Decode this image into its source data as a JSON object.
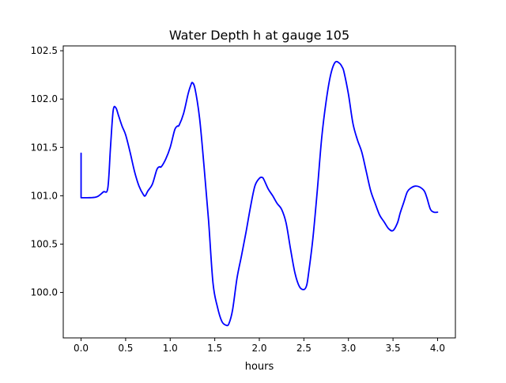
{
  "chart_data": {
    "type": "line",
    "title": "Water Depth h at gauge 105",
    "xlabel": "hours",
    "ylabel": "",
    "xlim": [
      -0.2,
      4.2
    ],
    "ylim": [
      99.53,
      102.55
    ],
    "x_ticks": [
      0.0,
      0.5,
      1.0,
      1.5,
      2.0,
      2.5,
      3.0,
      3.5,
      4.0
    ],
    "x_tick_labels": [
      "0.0",
      "0.5",
      "1.0",
      "1.5",
      "2.0",
      "2.5",
      "3.0",
      "3.5",
      "4.0"
    ],
    "y_ticks": [
      100.0,
      100.5,
      101.0,
      101.5,
      102.0,
      102.5
    ],
    "y_tick_labels": [
      "100.0",
      "100.5",
      "101.0",
      "101.5",
      "102.0",
      "102.5"
    ],
    "grid": false,
    "series": [
      {
        "color": "#0000ff",
        "x": [
          0.0,
          0.0,
          0.1,
          0.18,
          0.25,
          0.3,
          0.33,
          0.36,
          0.39,
          0.42,
          0.46,
          0.5,
          0.55,
          0.6,
          0.65,
          0.7,
          0.72,
          0.75,
          0.8,
          0.85,
          0.88,
          0.9,
          0.95,
          1.0,
          1.05,
          1.08,
          1.1,
          1.15,
          1.2,
          1.23,
          1.25,
          1.28,
          1.33,
          1.38,
          1.43,
          1.48,
          1.53,
          1.58,
          1.63,
          1.66,
          1.7,
          1.75,
          1.8,
          1.85,
          1.9,
          1.95,
          2.0,
          2.03,
          2.05,
          2.1,
          2.15,
          2.2,
          2.25,
          2.3,
          2.35,
          2.4,
          2.45,
          2.5,
          2.53,
          2.55,
          2.6,
          2.65,
          2.7,
          2.75,
          2.8,
          2.85,
          2.9,
          2.93,
          2.95,
          3.0,
          3.05,
          3.1,
          3.15,
          3.2,
          3.25,
          3.3,
          3.35,
          3.4,
          3.45,
          3.5,
          3.55,
          3.58,
          3.62,
          3.66,
          3.7,
          3.75,
          3.8,
          3.85,
          3.88,
          3.92,
          3.96,
          4.0
        ],
        "y": [
          101.44,
          100.98,
          100.98,
          100.99,
          101.03,
          101.08,
          101.5,
          101.88,
          101.91,
          101.83,
          101.72,
          101.62,
          101.45,
          101.25,
          101.1,
          101.0,
          101.0,
          101.08,
          101.15,
          101.28,
          101.3,
          101.3,
          101.38,
          101.5,
          101.68,
          101.72,
          101.73,
          101.82,
          102.0,
          102.12,
          102.17,
          102.1,
          101.8,
          101.3,
          100.75,
          100.1,
          99.85,
          99.72,
          99.66,
          99.68,
          99.82,
          100.15,
          100.38,
          100.6,
          100.85,
          101.08,
          101.18,
          101.19,
          101.17,
          101.07,
          101.0,
          100.92,
          100.85,
          100.75,
          100.5,
          100.23,
          100.07,
          100.02,
          100.05,
          100.12,
          100.38,
          100.9,
          101.55,
          101.95,
          102.25,
          102.38,
          102.37,
          102.33,
          102.28,
          102.05,
          101.75,
          101.58,
          101.45,
          101.25,
          101.05,
          100.9,
          100.78,
          100.72,
          100.65,
          100.64,
          100.7,
          100.8,
          100.9,
          101.03,
          101.08,
          101.1,
          101.09,
          101.05,
          100.98,
          100.88,
          100.75,
          100.7
        ],
        "y_adj": [
          101.44,
          100.98,
          100.98,
          100.99,
          101.04,
          101.08,
          101.5,
          101.88,
          101.91,
          101.83,
          101.72,
          101.63,
          101.45,
          101.25,
          101.1,
          101.01,
          101.0,
          101.05,
          101.12,
          101.27,
          101.3,
          101.3,
          101.38,
          101.5,
          101.68,
          101.72,
          101.73,
          101.85,
          102.05,
          102.14,
          102.17,
          102.1,
          101.8,
          101.3,
          100.75,
          100.1,
          99.85,
          99.7,
          99.66,
          99.68,
          99.82,
          100.15,
          100.38,
          100.62,
          100.88,
          101.1,
          101.18,
          101.19,
          101.17,
          101.07,
          101.0,
          100.92,
          100.86,
          100.72,
          100.45,
          100.2,
          100.06,
          100.03,
          100.07,
          100.18,
          100.55,
          101.05,
          101.6,
          101.98,
          102.25,
          102.38,
          102.37,
          102.33,
          102.28,
          102.05,
          101.75,
          101.58,
          101.45,
          101.25,
          101.05,
          100.92,
          100.8,
          100.73,
          100.66,
          100.64,
          100.72,
          100.82,
          100.93,
          101.04,
          101.08,
          101.1,
          101.09,
          101.05,
          100.98,
          100.86,
          100.83,
          100.83
        ]
      }
    ]
  }
}
